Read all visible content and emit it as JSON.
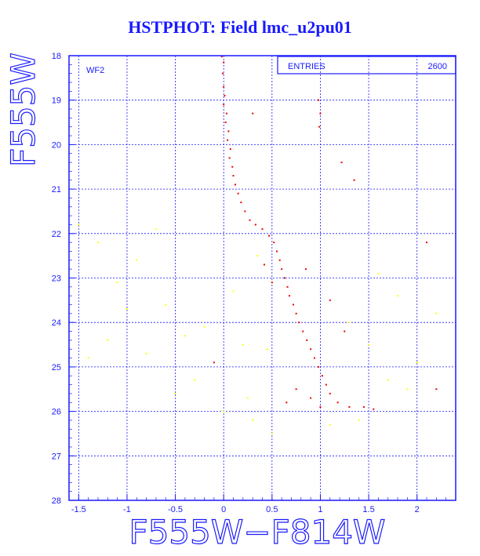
{
  "page": {
    "title": "HSTPHOT: Field lmc_u2pu01"
  },
  "chart_data": {
    "type": "scatter",
    "title": "HSTPHOT: Field lmc_u2pu01",
    "xlabel": "F555W−F814W",
    "ylabel": "F555W",
    "xlim": [
      -1.6,
      2.4
    ],
    "ylim": [
      28,
      18
    ],
    "y_inverted": true,
    "grid": true,
    "x_ticks": [
      -1.5,
      -1,
      -0.5,
      0,
      0.5,
      1,
      1.5,
      2
    ],
    "x_tick_labels": [
      "-1.5",
      "-1",
      "-0.5",
      "0",
      "0.5",
      "1",
      "1.5",
      "2"
    ],
    "y_ticks": [
      18,
      19,
      20,
      21,
      22,
      23,
      24,
      25,
      26,
      27,
      28
    ],
    "y_tick_labels": [
      "18",
      "19",
      "20",
      "21",
      "22",
      "23",
      "24",
      "25",
      "26",
      "27",
      "28"
    ],
    "panel_label": "WF2",
    "stats": {
      "label": "ENTRIES",
      "value": "2600"
    },
    "colors": {
      "frame": "#1a1aff",
      "grid": "#1a1aff",
      "main_points": "#ee0000",
      "field_points": "#ffff00"
    },
    "series": [
      {
        "color": "#ee0000",
        "points": [
          [
            -0.02,
            18.02
          ],
          [
            0.0,
            18.15
          ],
          [
            -0.01,
            18.4
          ],
          [
            0.0,
            18.7
          ],
          [
            0.01,
            18.9
          ],
          [
            0.0,
            19.1
          ],
          [
            0.03,
            19.3
          ],
          [
            0.02,
            19.5
          ],
          [
            0.05,
            19.7
          ],
          [
            0.04,
            19.9
          ],
          [
            0.07,
            20.1
          ],
          [
            0.06,
            20.3
          ],
          [
            0.09,
            20.5
          ],
          [
            0.1,
            20.7
          ],
          [
            0.12,
            20.9
          ],
          [
            0.15,
            21.1
          ],
          [
            0.18,
            21.3
          ],
          [
            0.22,
            21.5
          ],
          [
            0.27,
            21.7
          ],
          [
            0.33,
            21.8
          ],
          [
            0.4,
            21.9
          ],
          [
            0.47,
            22.05
          ],
          [
            0.52,
            22.2
          ],
          [
            0.55,
            22.4
          ],
          [
            0.58,
            22.6
          ],
          [
            0.6,
            22.8
          ],
          [
            0.63,
            23.0
          ],
          [
            0.66,
            23.2
          ],
          [
            0.68,
            23.4
          ],
          [
            0.72,
            23.6
          ],
          [
            0.75,
            23.8
          ],
          [
            0.78,
            24.0
          ],
          [
            0.82,
            24.2
          ],
          [
            0.86,
            24.4
          ],
          [
            0.9,
            24.6
          ],
          [
            0.94,
            24.8
          ],
          [
            0.98,
            25.0
          ],
          [
            1.02,
            25.2
          ],
          [
            1.06,
            25.4
          ],
          [
            1.1,
            25.6
          ],
          [
            1.18,
            25.8
          ],
          [
            1.3,
            25.9
          ],
          [
            1.45,
            25.9
          ],
          [
            1.55,
            25.95
          ],
          [
            0.75,
            25.5
          ],
          [
            0.9,
            25.7
          ],
          [
            1.0,
            25.9
          ],
          [
            0.65,
            25.8
          ],
          [
            0.98,
            19.0
          ],
          [
            1.0,
            19.3
          ],
          [
            0.99,
            19.6
          ],
          [
            1.22,
            20.4
          ],
          [
            1.35,
            20.8
          ],
          [
            2.1,
            22.2
          ],
          [
            2.2,
            25.5
          ],
          [
            0.3,
            19.3
          ],
          [
            0.42,
            22.7
          ],
          [
            0.5,
            23.1
          ],
          [
            1.1,
            23.5
          ],
          [
            1.25,
            24.2
          ],
          [
            0.85,
            22.8
          ],
          [
            -0.1,
            24.9
          ]
        ]
      },
      {
        "color": "#ffff00",
        "points": [
          [
            -1.5,
            21.8
          ],
          [
            -1.3,
            22.2
          ],
          [
            -1.2,
            24.4
          ],
          [
            -1.0,
            23.7
          ],
          [
            -0.8,
            24.7
          ],
          [
            -0.6,
            23.6
          ],
          [
            -0.4,
            24.3
          ],
          [
            -0.3,
            25.3
          ],
          [
            -0.2,
            24.1
          ],
          [
            0.0,
            26.0
          ],
          [
            0.1,
            23.3
          ],
          [
            0.2,
            24.5
          ],
          [
            0.25,
            25.7
          ],
          [
            0.35,
            22.5
          ],
          [
            0.45,
            24.6
          ],
          [
            0.3,
            26.2
          ],
          [
            1.3,
            24.0
          ],
          [
            1.5,
            24.5
          ],
          [
            1.7,
            25.3
          ],
          [
            1.9,
            25.5
          ],
          [
            2.0,
            24.9
          ],
          [
            1.6,
            22.9
          ],
          [
            1.8,
            23.4
          ],
          [
            -1.4,
            24.8
          ],
          [
            -0.7,
            21.9
          ],
          [
            -0.9,
            22.6
          ],
          [
            0.5,
            26.5
          ],
          [
            1.1,
            26.3
          ],
          [
            1.4,
            26.2
          ],
          [
            -0.5,
            25.6
          ],
          [
            -1.1,
            23.1
          ],
          [
            2.2,
            23.8
          ]
        ]
      }
    ]
  }
}
